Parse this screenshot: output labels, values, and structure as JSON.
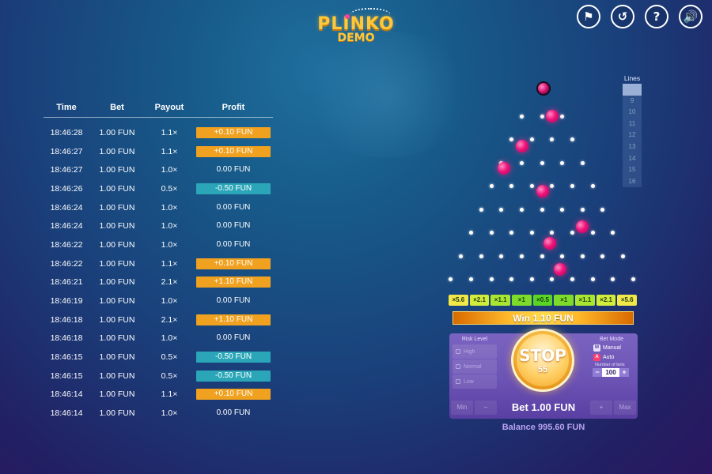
{
  "logo": {
    "title": "PLINKO",
    "subtitle": "DEMO"
  },
  "top_icons": [
    {
      "name": "medal-icon",
      "glyph": "⚑"
    },
    {
      "name": "history-icon",
      "glyph": "↺"
    },
    {
      "name": "help-icon",
      "glyph": "?"
    },
    {
      "name": "sound-icon",
      "glyph": "🔊"
    }
  ],
  "history": {
    "headers": {
      "time": "Time",
      "bet": "Bet",
      "payout": "Payout",
      "profit": "Profit"
    },
    "rows": [
      {
        "time": "18:46:28",
        "bet": "1.00 FUN",
        "payout": "1.1×",
        "profit": "+0.10 FUN",
        "kind": "pos"
      },
      {
        "time": "18:46:27",
        "bet": "1.00 FUN",
        "payout": "1.1×",
        "profit": "+0.10 FUN",
        "kind": "pos"
      },
      {
        "time": "18:46:27",
        "bet": "1.00 FUN",
        "payout": "1.0×",
        "profit": "0.00 FUN",
        "kind": "zero"
      },
      {
        "time": "18:46:26",
        "bet": "1.00 FUN",
        "payout": "0.5×",
        "profit": "-0.50 FUN",
        "kind": "neg"
      },
      {
        "time": "18:46:24",
        "bet": "1.00 FUN",
        "payout": "1.0×",
        "profit": "0.00 FUN",
        "kind": "zero"
      },
      {
        "time": "18:46:24",
        "bet": "1.00 FUN",
        "payout": "1.0×",
        "profit": "0.00 FUN",
        "kind": "zero"
      },
      {
        "time": "18:46:22",
        "bet": "1.00 FUN",
        "payout": "1.0×",
        "profit": "0.00 FUN",
        "kind": "zero"
      },
      {
        "time": "18:46:22",
        "bet": "1.00 FUN",
        "payout": "1.1×",
        "profit": "+0.10 FUN",
        "kind": "pos"
      },
      {
        "time": "18:46:21",
        "bet": "1.00 FUN",
        "payout": "2.1×",
        "profit": "+1.10 FUN",
        "kind": "pos"
      },
      {
        "time": "18:46:19",
        "bet": "1.00 FUN",
        "payout": "1.0×",
        "profit": "0.00 FUN",
        "kind": "zero"
      },
      {
        "time": "18:46:18",
        "bet": "1.00 FUN",
        "payout": "2.1×",
        "profit": "+1.10 FUN",
        "kind": "pos"
      },
      {
        "time": "18:46:18",
        "bet": "1.00 FUN",
        "payout": "1.0×",
        "profit": "0.00 FUN",
        "kind": "zero"
      },
      {
        "time": "18:46:15",
        "bet": "1.00 FUN",
        "payout": "0.5×",
        "profit": "-0.50 FUN",
        "kind": "neg"
      },
      {
        "time": "18:46:15",
        "bet": "1.00 FUN",
        "payout": "0.5×",
        "profit": "-0.50 FUN",
        "kind": "neg"
      },
      {
        "time": "18:46:14",
        "bet": "1.00 FUN",
        "payout": "1.1×",
        "profit": "+0.10 FUN",
        "kind": "pos"
      },
      {
        "time": "18:46:14",
        "bet": "1.00 FUN",
        "payout": "1.0×",
        "profit": "0.00 FUN",
        "kind": "zero"
      }
    ]
  },
  "lines": {
    "title": "Lines",
    "options": [
      "8",
      "9",
      "10",
      "11",
      "12",
      "13",
      "14",
      "15",
      "16"
    ],
    "selected": "8"
  },
  "multipliers": [
    {
      "label": "×5.6",
      "color": "#f2e84a"
    },
    {
      "label": "×2.1",
      "color": "#d2ec3c"
    },
    {
      "label": "×1.1",
      "color": "#a9e631"
    },
    {
      "label": "×1",
      "color": "#7ddc2a"
    },
    {
      "label": "×0.5",
      "color": "#5ad523"
    },
    {
      "label": "×1",
      "color": "#7ddc2a"
    },
    {
      "label": "×1.1",
      "color": "#a9e631"
    },
    {
      "label": "×2.1",
      "color": "#d2ec3c"
    },
    {
      "label": "×5.6",
      "color": "#f2e84a"
    }
  ],
  "win_banner": "Win 1.10 FUN",
  "panel": {
    "risk_title": "Risk Level",
    "risk_options": [
      "High",
      "Normal",
      "Low"
    ],
    "stop_label": "STOP",
    "stop_count": "55",
    "bet_mode_title": "Bet Mode",
    "manual_label": "Manual",
    "auto_label": "Auto",
    "manual_badge": "M",
    "auto_badge": "A",
    "number_of_bets_label": "Number of bets",
    "number_of_bets_value": "100",
    "min_label": "Min",
    "minus_label": "−",
    "plus_label": "+",
    "max_label": "Max",
    "bet_text": "Bet 1.00 FUN"
  },
  "balance": "Balance 995.60 FUN",
  "colors": {
    "profit_pos": "#f0a11f",
    "profit_neg": "#2aa6b8",
    "ball": "#f0147a",
    "logo": "#ffc83a",
    "panel": "#6d55b6"
  }
}
